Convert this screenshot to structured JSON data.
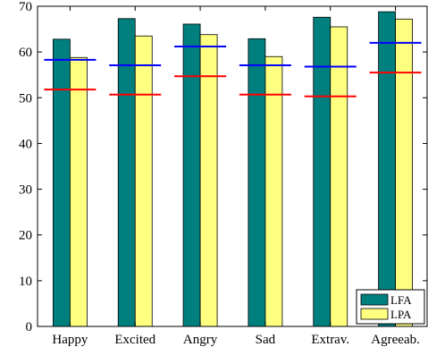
{
  "chart_data": {
    "type": "bar",
    "categories": [
      "Happy",
      "Excited",
      "Angry",
      "Sad",
      "Extrav.",
      "Agreeab."
    ],
    "series": [
      {
        "name": "LFA",
        "color": "#007f7f",
        "values": [
          62.8,
          67.3,
          66.1,
          62.9,
          67.6,
          68.8
        ]
      },
      {
        "name": "LPA",
        "color": "#ffff80",
        "values": [
          58.8,
          63.5,
          63.8,
          59.0,
          65.5,
          67.2
        ]
      }
    ],
    "reference_lines": [
      {
        "color": "#0000ff",
        "values": [
          58.3,
          57.1,
          61.2,
          57.1,
          56.8,
          62.0
        ]
      },
      {
        "color": "#ff0000",
        "values": [
          51.8,
          50.7,
          54.7,
          50.7,
          50.3,
          55.5
        ]
      }
    ],
    "ylim": [
      0,
      70
    ],
    "yticks": [
      0,
      10,
      20,
      30,
      40,
      50,
      60,
      70
    ],
    "xlabel": "",
    "ylabel": "",
    "title": "",
    "grid": false,
    "legend_position": "bottom-right"
  }
}
